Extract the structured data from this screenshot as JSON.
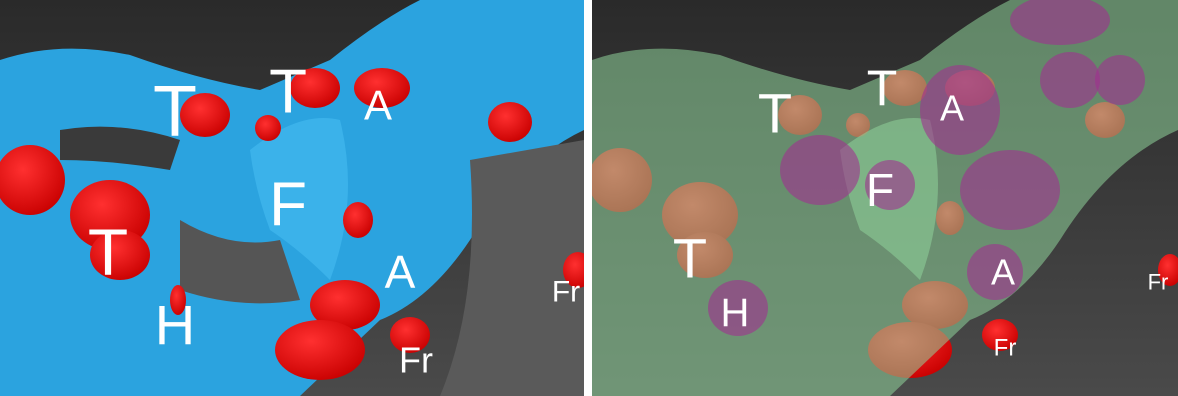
{
  "panels": [
    {
      "labels": [
        "T",
        "T",
        "A",
        "F",
        "T",
        "H",
        "A",
        "Fr",
        "Fr"
      ]
    },
    {
      "labels": [
        "T",
        "T",
        "A",
        "F",
        "T",
        "H",
        "A",
        "Fr",
        "Fr"
      ]
    }
  ]
}
